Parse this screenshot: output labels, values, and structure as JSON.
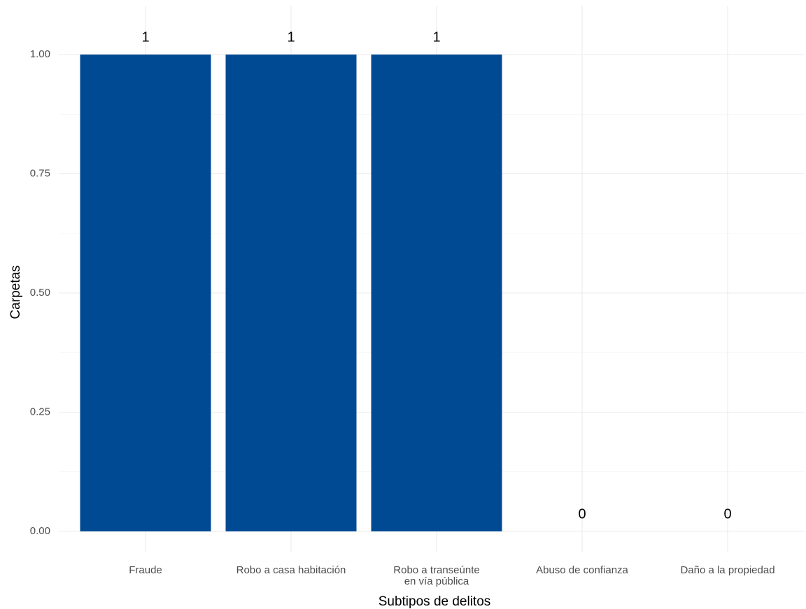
{
  "chart_data": {
    "type": "bar",
    "title": "",
    "xlabel": "Subtipos de delitos",
    "ylabel": "Carpetas",
    "categories": [
      [
        "Fraude"
      ],
      [
        "Robo a casa habitación"
      ],
      [
        "Robo a transeúnte",
        "en vía pública"
      ],
      [
        "Abuso de confianza"
      ],
      [
        "Daño a la propiedad"
      ]
    ],
    "values": [
      1,
      1,
      1,
      0,
      0
    ],
    "data_labels": [
      "1",
      "1",
      "1",
      "0",
      "0"
    ],
    "ylim": [
      0,
      1
    ],
    "yticks": [
      0,
      0.25,
      0.5,
      0.75,
      1
    ],
    "ytick_labels": [
      "0.00",
      "0.25",
      "0.50",
      "0.75",
      "1.00"
    ],
    "bar_color": "#004a93",
    "grid": true,
    "legend": "none"
  }
}
